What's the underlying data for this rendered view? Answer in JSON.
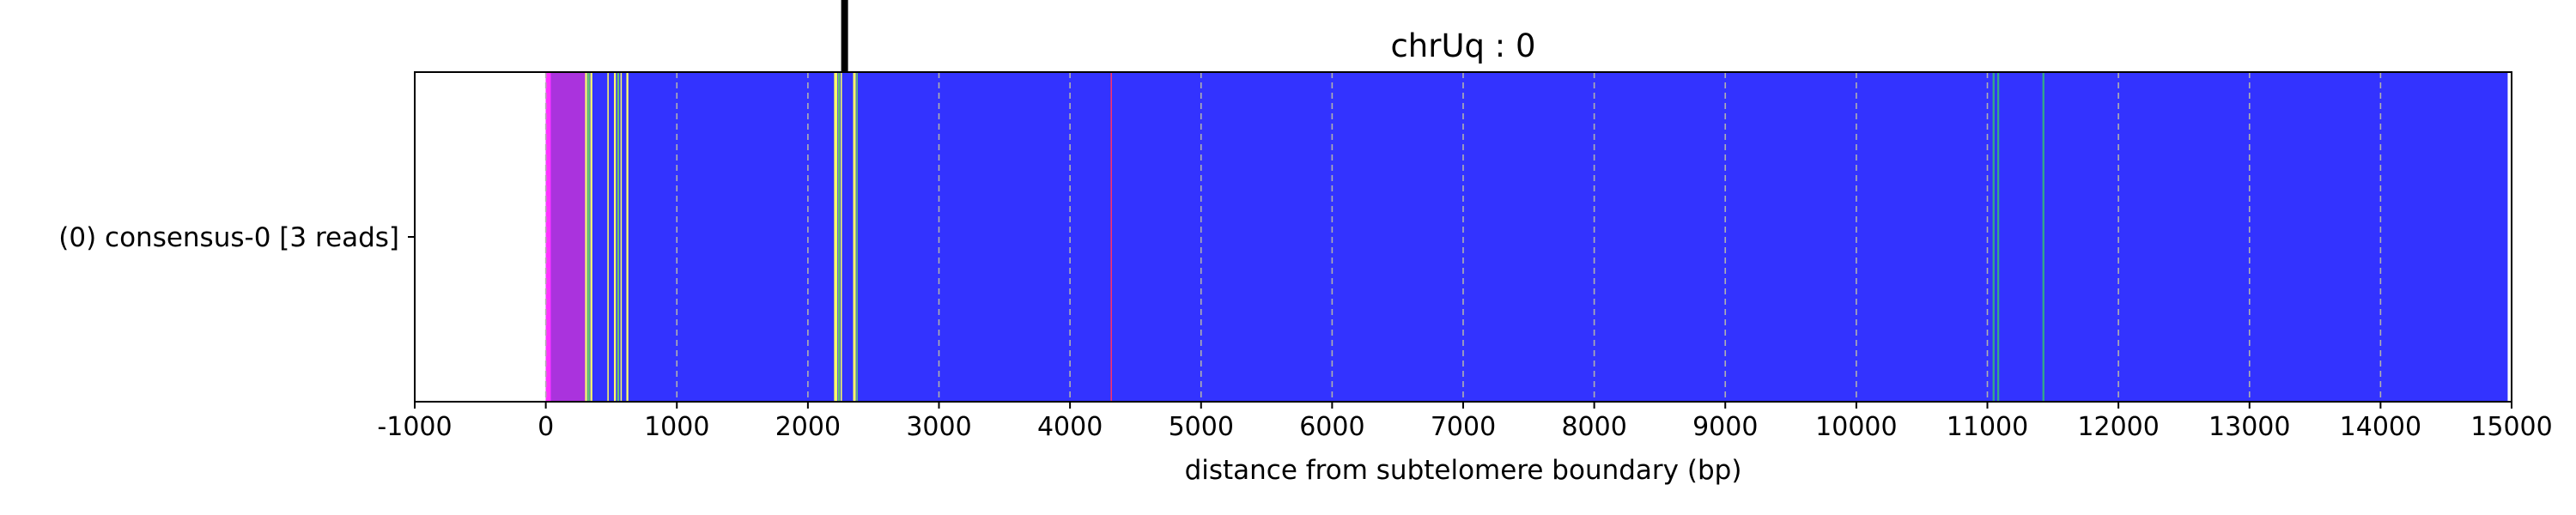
{
  "chart_data": {
    "type": "heatmap",
    "title": "chrUq : 0",
    "xlabel": "distance from subtelomere boundary (bp)",
    "ylabel": "",
    "xlim": [
      -1000,
      15000
    ],
    "x_ticks": [
      -1000,
      0,
      1000,
      2000,
      3000,
      4000,
      5000,
      6000,
      7000,
      8000,
      9000,
      10000,
      11000,
      12000,
      13000,
      14000,
      15000
    ],
    "x_tick_labels": [
      "-1000",
      "0",
      "1000",
      "2000",
      "3000",
      "4000",
      "5000",
      "6000",
      "7000",
      "8000",
      "9000",
      "10000",
      "11000",
      "12000",
      "13000",
      "14000",
      "15000"
    ],
    "grid": "vertical dashed at x ticks",
    "boundary_marker_x": 2280,
    "rows": [
      {
        "label": "(0) consensus-0 [3 reads]",
        "background_color": "#3333ff",
        "start": 0,
        "end": 14970,
        "segments": [
          {
            "start": 0,
            "end": 40,
            "color": "#ff33ff"
          },
          {
            "start": 40,
            "end": 300,
            "color": "#aa33dd"
          },
          {
            "start": 300,
            "end": 315,
            "color": "#ffff66"
          },
          {
            "start": 318,
            "end": 335,
            "color": "#66cc66"
          },
          {
            "start": 340,
            "end": 355,
            "color": "#ffff66"
          },
          {
            "start": 470,
            "end": 480,
            "color": "#ffff66"
          },
          {
            "start": 520,
            "end": 535,
            "color": "#ffff66"
          },
          {
            "start": 545,
            "end": 560,
            "color": "#66cc66"
          },
          {
            "start": 570,
            "end": 580,
            "color": "#ffff66"
          },
          {
            "start": 615,
            "end": 630,
            "color": "#ffff66"
          },
          {
            "start": 2200,
            "end": 2225,
            "color": "#ffff66"
          },
          {
            "start": 2230,
            "end": 2245,
            "color": "#66cc66"
          },
          {
            "start": 2250,
            "end": 2260,
            "color": "#ffff66"
          },
          {
            "start": 2345,
            "end": 2365,
            "color": "#ffff66"
          },
          {
            "start": 2370,
            "end": 2380,
            "color": "#66cc66"
          },
          {
            "start": 4310,
            "end": 4320,
            "color": "#ff3366"
          },
          {
            "start": 11040,
            "end": 11055,
            "color": "#33aa88"
          },
          {
            "start": 11075,
            "end": 11090,
            "color": "#33aa88"
          },
          {
            "start": 11420,
            "end": 11435,
            "color": "#33aa88"
          }
        ]
      }
    ]
  }
}
